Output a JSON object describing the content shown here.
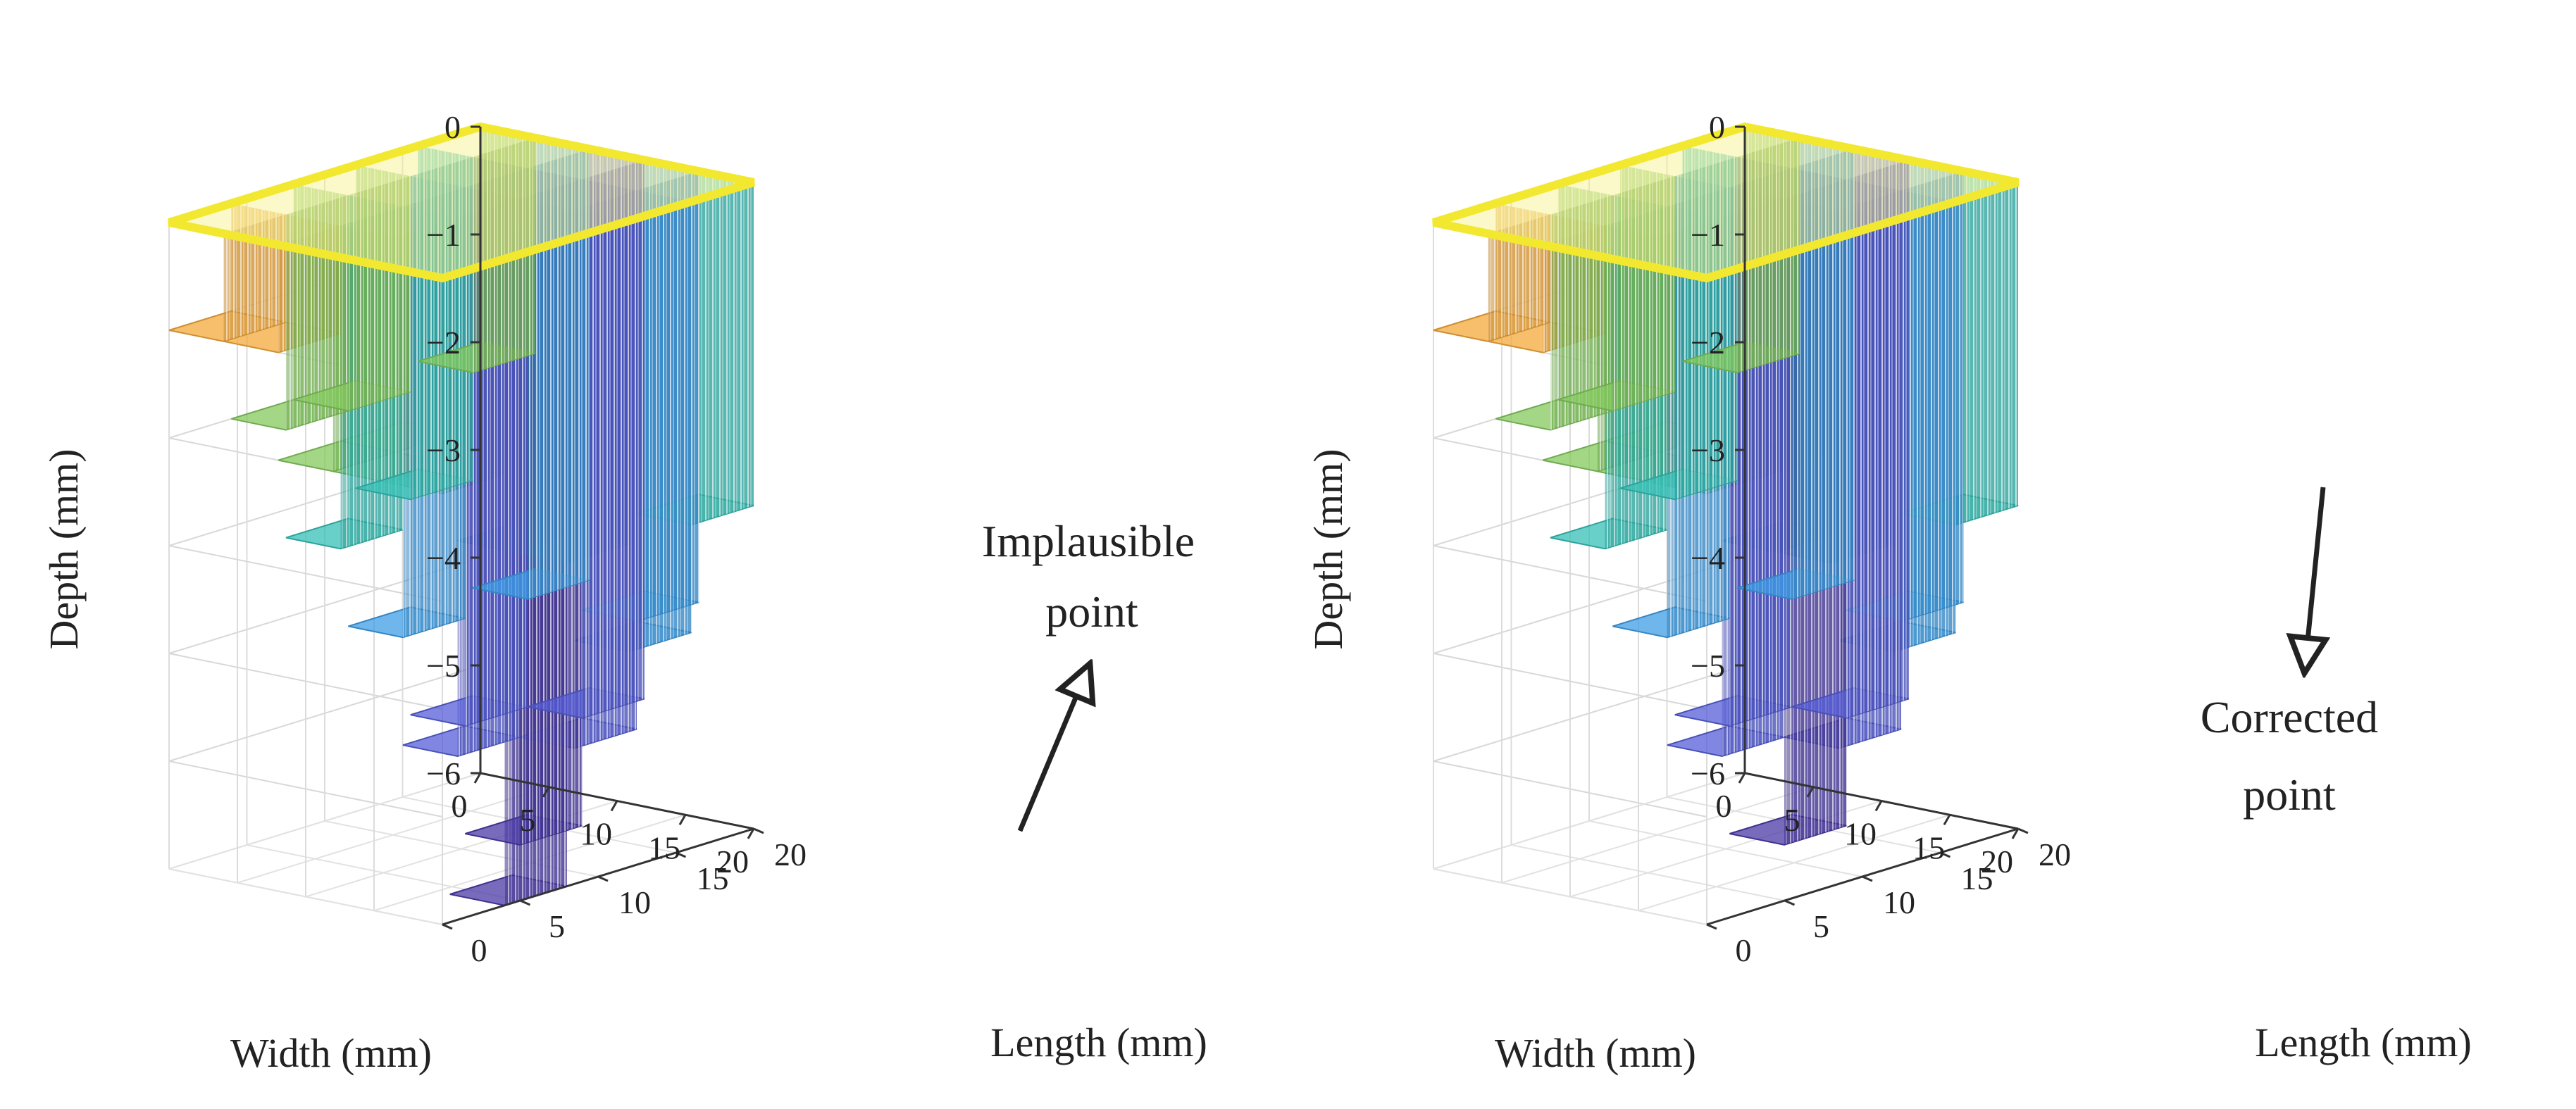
{
  "figure": {
    "panels": [
      "left",
      "right"
    ]
  },
  "chart_data": [
    {
      "type": "surface3d",
      "panel": "left",
      "title": "",
      "xlabel": "Width (mm)",
      "ylabel": "Length (mm)",
      "zlabel": "Depth (mm)",
      "xlim": [
        0,
        20
      ],
      "ylim": [
        0,
        20
      ],
      "zlim": [
        -6,
        0
      ],
      "x_ticks": [
        "0",
        "5",
        "10",
        "15",
        "20"
      ],
      "y_ticks": [
        "0",
        "5",
        "10",
        "15",
        "20"
      ],
      "z_ticks": [
        "0",
        "−1",
        "−2",
        "−3",
        "−4",
        "−5",
        "−6"
      ],
      "grid": true,
      "colormap": "parula",
      "depth_grid_note": "stepped depth profile, 5x5 cells of 4 mm, depth in mm",
      "depth_grid": [
        [
          -1,
          -1,
          -2,
          -2,
          -2
        ],
        [
          -2,
          -3,
          -2,
          -1,
          -6
        ],
        [
          -2,
          -4,
          -5,
          -3,
          -3
        ],
        [
          -3,
          -5,
          -6,
          -5,
          -4
        ],
        [
          -2,
          -4,
          -5,
          -4,
          -3
        ]
      ],
      "annotation": {
        "text_line1": "Implausible",
        "text_line2": "point"
      }
    },
    {
      "type": "surface3d",
      "panel": "right",
      "title": "",
      "xlabel": "Width (mm)",
      "ylabel": "Length (mm)",
      "zlabel": "Depth (mm)",
      "xlim": [
        0,
        20
      ],
      "ylim": [
        0,
        20
      ],
      "zlim": [
        -6,
        0
      ],
      "x_ticks": [
        "0",
        "5",
        "10",
        "15",
        "20"
      ],
      "y_ticks": [
        "0",
        "5",
        "10",
        "15",
        "20"
      ],
      "z_ticks": [
        "0",
        "−1",
        "−2",
        "−3",
        "−4",
        "−5",
        "−6"
      ],
      "grid": true,
      "colormap": "parula",
      "depth_grid_note": "stepped depth profile, 5x5 cells of 4 mm, depth in mm",
      "depth_grid": [
        [
          -1,
          -1,
          -2,
          -2,
          -2
        ],
        [
          -2,
          -3,
          -2,
          -1,
          -2
        ],
        [
          -2,
          -4,
          -5,
          -3,
          -3
        ],
        [
          -3,
          -5,
          -6,
          -5,
          -4
        ],
        [
          -2,
          -4,
          -5,
          -4,
          -3
        ]
      ],
      "annotation": {
        "text_line1": "Corrected",
        "text_line2": "point"
      }
    }
  ]
}
